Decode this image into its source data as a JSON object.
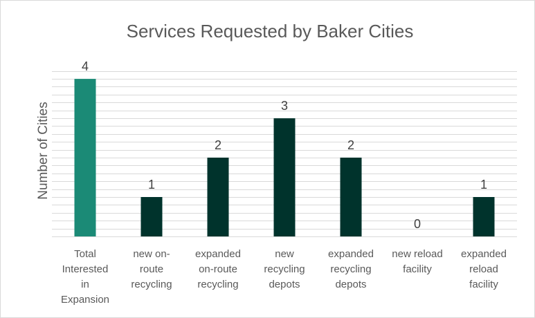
{
  "chart_data": {
    "type": "bar",
    "title": "Services Requested by Baker Cities",
    "xlabel": "",
    "ylabel": "Number of Cities",
    "categories": [
      [
        "Total",
        "Interested",
        "in",
        "Expansion"
      ],
      [
        "new on-",
        "route",
        "recycling"
      ],
      [
        "expanded",
        "on-route",
        "recycling"
      ],
      [
        "new",
        "recycling",
        "depots"
      ],
      [
        "expanded",
        "recycling",
        "depots"
      ],
      [
        "new reload",
        "facility"
      ],
      [
        "expanded",
        "reload",
        "facility"
      ]
    ],
    "values": [
      4,
      1,
      2,
      3,
      2,
      0,
      1
    ],
    "bar_colors": [
      "#1b8a76",
      "#00332c",
      "#00332c",
      "#00332c",
      "#00332c",
      "#00332c",
      "#00332c"
    ],
    "ylim": [
      0,
      4.3
    ],
    "grid_step": 0.2,
    "grid": true,
    "legend": "none",
    "data_labels": true
  }
}
